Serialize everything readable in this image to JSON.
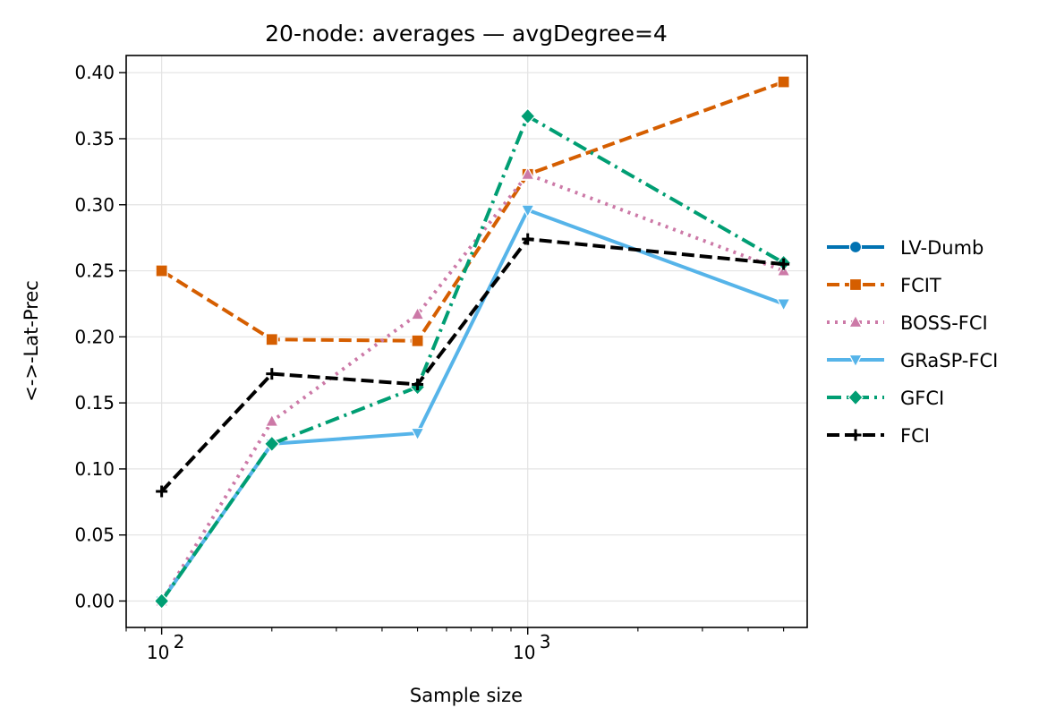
{
  "chart_data": {
    "type": "line",
    "title": "20-node: averages — avgDegree=4",
    "xlabel": "Sample size",
    "ylabel": "<->-Lat-Prec",
    "xscale": "log",
    "xlim": [
      80,
      5800
    ],
    "ylim": [
      -0.02,
      0.413
    ],
    "grid": true,
    "legend_position": "right-outside",
    "x": [
      100,
      200,
      500,
      1000,
      5000
    ],
    "x_ticks": [
      {
        "value": 100,
        "base": "10",
        "exp": "2"
      },
      {
        "value": 1000,
        "base": "10",
        "exp": "3"
      }
    ],
    "y_ticks": [
      {
        "value": 0.0,
        "label": "0.00"
      },
      {
        "value": 0.05,
        "label": "0.05"
      },
      {
        "value": 0.1,
        "label": "0.10"
      },
      {
        "value": 0.15,
        "label": "0.15"
      },
      {
        "value": 0.2,
        "label": "0.20"
      },
      {
        "value": 0.25,
        "label": "0.25"
      },
      {
        "value": 0.3,
        "label": "0.30"
      },
      {
        "value": 0.35,
        "label": "0.35"
      },
      {
        "value": 0.4,
        "label": "0.40"
      }
    ],
    "series": [
      {
        "name": "LV-Dumb",
        "color": "#0072b2",
        "marker": "circle",
        "dash": "solid",
        "values": [
          null,
          null,
          null,
          null,
          null
        ]
      },
      {
        "name": "FCIT",
        "color": "#d55e00",
        "marker": "square",
        "dash": "dashed",
        "values": [
          0.25,
          0.198,
          0.197,
          0.323,
          0.393
        ]
      },
      {
        "name": "BOSS-FCI",
        "color": "#cc79a7",
        "marker": "triangle-up",
        "dash": "dotted",
        "values": [
          0.0,
          0.136,
          0.217,
          0.323,
          0.25
        ]
      },
      {
        "name": "GRaSP-FCI",
        "color": "#56b4e9",
        "marker": "triangle-down",
        "dash": "solid",
        "values": [
          0.0,
          0.119,
          0.127,
          0.296,
          0.225
        ]
      },
      {
        "name": "GFCI",
        "color": "#009e73",
        "marker": "diamond",
        "dash": "dashdot",
        "values": [
          0.0,
          0.119,
          0.162,
          0.367,
          0.256
        ]
      },
      {
        "name": "FCI",
        "color": "#000000",
        "marker": "plus",
        "dash": "dashed",
        "values": [
          0.083,
          0.172,
          0.164,
          0.274,
          0.255
        ]
      }
    ]
  }
}
